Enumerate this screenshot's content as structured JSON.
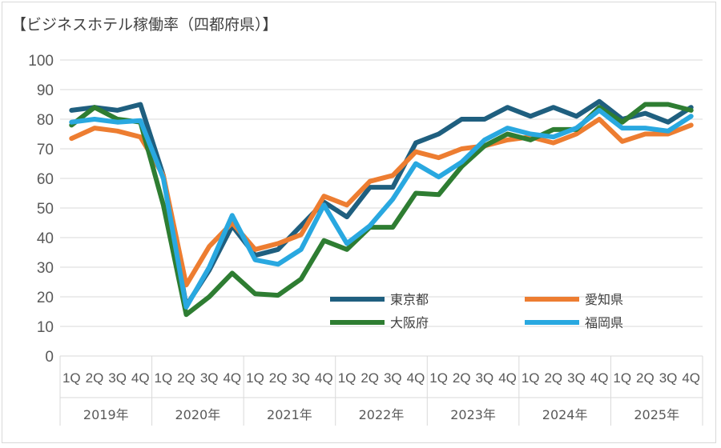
{
  "chart_data": {
    "type": "line",
    "title": "【ビジネスホテル稼働率（四都府県）】",
    "ylim": [
      0,
      100
    ],
    "y_ticks": [
      0,
      10,
      20,
      30,
      40,
      50,
      60,
      70,
      80,
      90,
      100
    ],
    "grid": "horizontal",
    "legend_position": "bottom-right",
    "categories": [
      "1Q",
      "2Q",
      "3Q",
      "4Q",
      "1Q",
      "2Q",
      "3Q",
      "4Q",
      "1Q",
      "2Q",
      "3Q",
      "4Q",
      "1Q",
      "2Q",
      "3Q",
      "4Q",
      "1Q",
      "2Q",
      "3Q",
      "4Q",
      "1Q",
      "2Q",
      "3Q",
      "4Q",
      "1Q",
      "2Q",
      "3Q",
      "4Q"
    ],
    "quarter_labels": [
      "1Q",
      "2Q",
      "3Q",
      "4Q"
    ],
    "years": [
      "2019年",
      "2020年",
      "2021年",
      "2022年",
      "2023年",
      "2024年",
      "2025年"
    ],
    "series": [
      {
        "name": "東京都",
        "color": "#1f5f7f",
        "values": [
          83,
          84,
          83,
          85,
          61,
          17,
          29,
          44,
          34,
          36,
          44,
          52,
          47,
          57,
          57,
          72,
          75,
          80,
          80,
          84,
          81,
          84,
          81,
          86,
          80,
          82,
          79,
          84
        ]
      },
      {
        "name": "愛知県",
        "color": "#ed7d31",
        "values": [
          73.5,
          77,
          76,
          74,
          61,
          24,
          37,
          45,
          36,
          38,
          41,
          54,
          51,
          59,
          61,
          69,
          67,
          70,
          71,
          73,
          74,
          72,
          75,
          80,
          72.5,
          75,
          75,
          78
        ]
      },
      {
        "name": "大阪府",
        "color": "#2e7d32",
        "values": [
          78,
          84,
          80,
          79,
          51,
          14,
          20,
          28,
          21,
          20.5,
          26,
          39,
          36,
          43.5,
          43.5,
          55,
          54.5,
          64,
          71,
          75,
          73,
          76.5,
          76.5,
          84,
          79,
          85,
          85,
          83
        ]
      },
      {
        "name": "福岡県",
        "color": "#29a8e0",
        "values": [
          79,
          80,
          79,
          79.5,
          60,
          16.5,
          30,
          47.5,
          32.5,
          31,
          36,
          51,
          38,
          44,
          53,
          65,
          60.5,
          65.5,
          73,
          77,
          75,
          74,
          77,
          83,
          77,
          77,
          76,
          81
        ]
      }
    ]
  }
}
